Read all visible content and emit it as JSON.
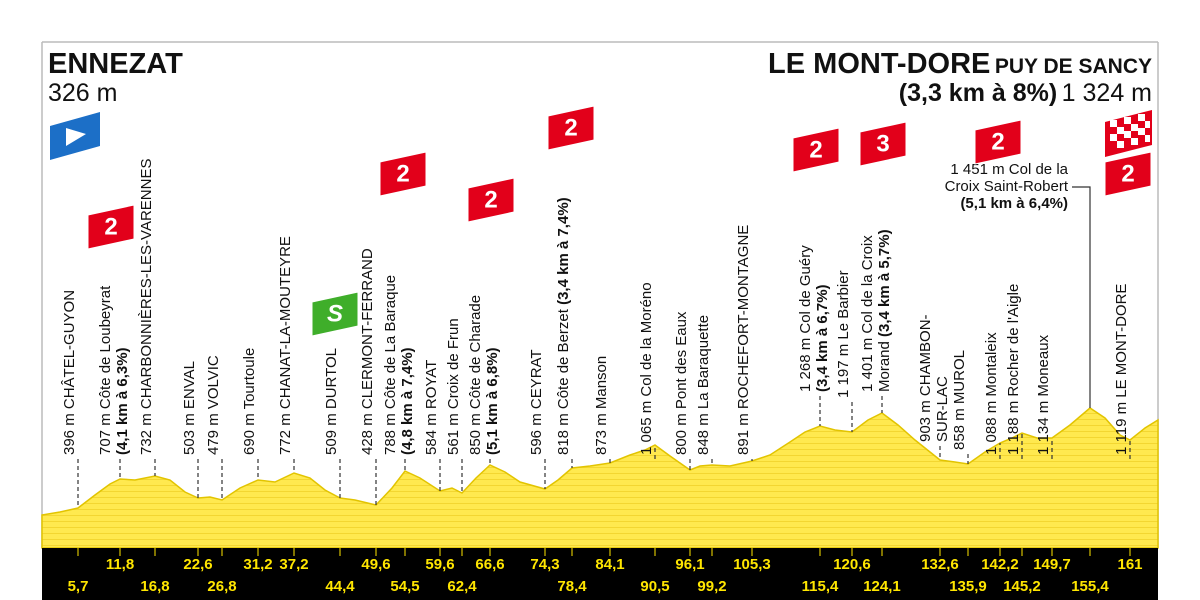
{
  "header": {
    "start": {
      "name": "ENNEZAT",
      "altitude": "326 m"
    },
    "finish": {
      "name": "LE MONT-DORE",
      "suffix": "PUY DE SANCY",
      "climb": "(3,3 km à 8%)",
      "altitude": "1 324 m"
    }
  },
  "waypoints": [
    {
      "km": "5,7",
      "lines": [
        "396 m CHÂTEL-GUYON"
      ]
    },
    {
      "km": "11,8",
      "lines": [
        "707 m Côte de Loubeyrat",
        "(4,1 km à 6,3%)"
      ],
      "badge": "2"
    },
    {
      "km": "16,8",
      "lines": [
        "732 m CHARBONNIÈRES-LES-VARENNES"
      ]
    },
    {
      "km": "22,6",
      "lines": [
        "503 m ENVAL"
      ]
    },
    {
      "km": "26,8",
      "lines": [
        "479 m VOLVIC"
      ]
    },
    {
      "km": "31,2",
      "lines": [
        "690 m Tourtoule"
      ]
    },
    {
      "km": "37,2",
      "lines": [
        "772 m CHANAT-LA-MOUTEYRE"
      ]
    },
    {
      "km": "44,4",
      "lines": [
        "509 m DURTOL"
      ],
      "badge": "S"
    },
    {
      "km": "49,6",
      "lines": [
        "428 m CLERMONT-FERRAND"
      ]
    },
    {
      "km": "54,5",
      "lines": [
        "788 m Côte de La Baraque",
        "(4,8 km à 7,4%)"
      ],
      "badge": "2"
    },
    {
      "km": "59,6",
      "lines": [
        "584 m ROYAT"
      ]
    },
    {
      "km": "62,4",
      "lines": [
        "561 m Croix de Frun"
      ]
    },
    {
      "km": "66,6",
      "lines": [
        "850 m Côte de Charade",
        "(5,1 km à 6,8%)"
      ],
      "badge": "2"
    },
    {
      "km": "74,3",
      "lines": [
        "596 m CEYRAT"
      ]
    },
    {
      "km": "78,4",
      "lines": [
        "818 m Côte de Berzet (3,4 km à 7,4%)"
      ],
      "badge": "2"
    },
    {
      "km": "84,1",
      "lines": [
        "873 m Manson"
      ]
    },
    {
      "km": "90,5",
      "lines": [
        "1 065 m Col de la Moréno"
      ]
    },
    {
      "km": "96,1",
      "lines": [
        "800 m Pont des Eaux"
      ]
    },
    {
      "km": "99,2",
      "lines": [
        "848 m La Baraquette"
      ]
    },
    {
      "km": "105,3",
      "lines": [
        "891 m ROCHEFORT-MONTAGNE"
      ]
    },
    {
      "km": "115,4",
      "lines": [
        "1 268 m Col de Guéry",
        "(3,4 km à 6,7%)"
      ],
      "badge": "2"
    },
    {
      "km": "120,6",
      "lines": [
        "1 197 m Le Barbier"
      ]
    },
    {
      "km": "124,1",
      "lines": [
        "1 401 m Col de la Croix",
        "Morand (3,4 km à 5,7%)"
      ],
      "badge": "3"
    },
    {
      "km": "132,6",
      "lines": [
        "903 m CHAMBON-",
        "SUR-LAC"
      ]
    },
    {
      "km": "135,9",
      "lines": [
        "858 m MUROL"
      ]
    },
    {
      "km": "142,2",
      "lines": [
        "1 088 m Montaleix"
      ]
    },
    {
      "km": "145,2",
      "lines": [
        "1 188 m Rocher de l'Aigle"
      ]
    },
    {
      "km": "149,7",
      "lines": [
        "1 134 m Moneaux"
      ]
    },
    {
      "km": "155,4",
      "lines": [
        "1 451 m Col de la",
        "Croix Saint-Robert",
        "(5,1 km à 6,4%)"
      ],
      "badge": "2"
    },
    {
      "km": "161",
      "lines": [
        "1 119 m LE MONT-DORE"
      ],
      "badge": "2"
    }
  ]
}
